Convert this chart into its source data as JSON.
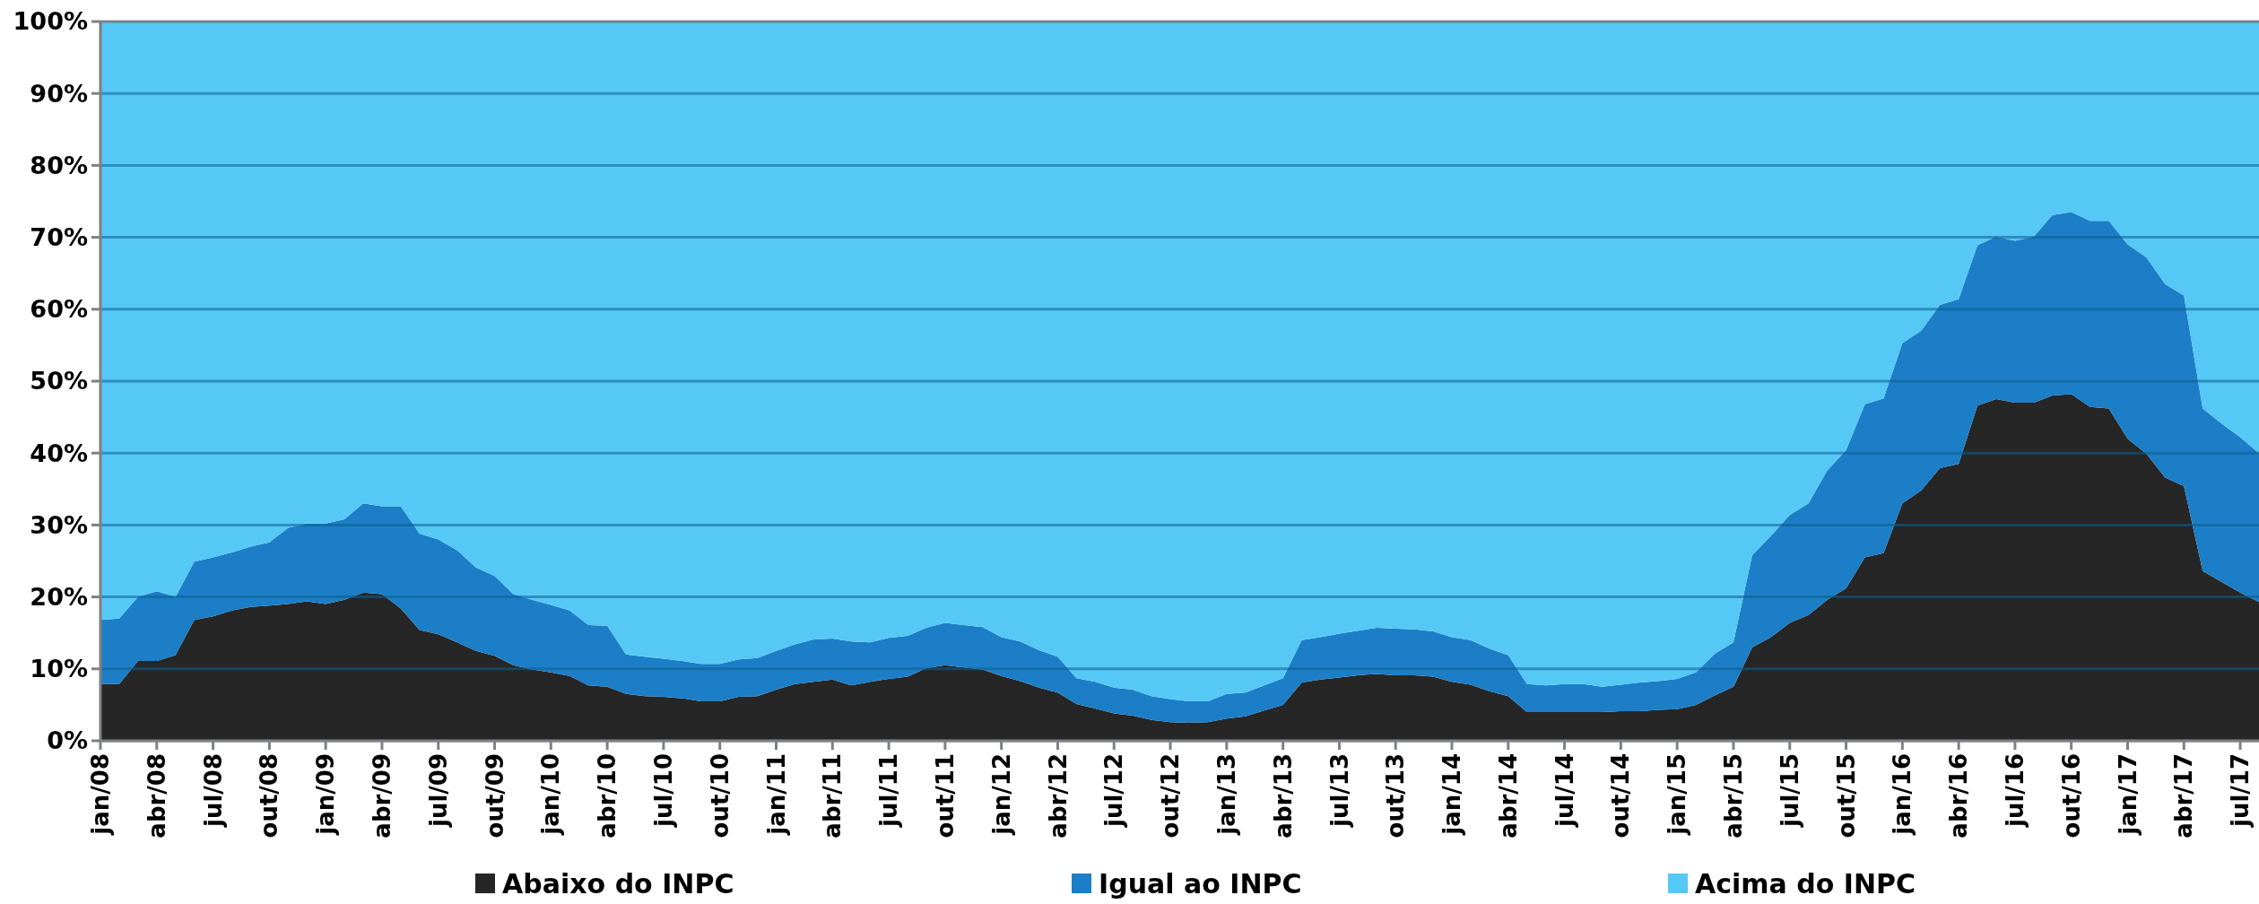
{
  "chart_data": {
    "type": "area",
    "stacked": true,
    "categories": [
      "jan/08",
      null,
      null,
      "abr/08",
      null,
      null,
      "jul/08",
      null,
      null,
      "out/08",
      null,
      null,
      "jan/09",
      null,
      null,
      "abr/09",
      null,
      null,
      "jul/09",
      null,
      null,
      "out/09",
      null,
      null,
      "jan/10",
      null,
      null,
      "abr/10",
      null,
      null,
      "jul/10",
      null,
      null,
      "out/10",
      null,
      null,
      "jan/11",
      null,
      null,
      "abr/11",
      null,
      null,
      "jul/11",
      null,
      null,
      "out/11",
      null,
      null,
      "jan/12",
      null,
      null,
      "abr/12",
      null,
      null,
      "jul/12",
      null,
      null,
      "out/12",
      null,
      null,
      "jan/13",
      null,
      null,
      "abr/13",
      null,
      null,
      "jul/13",
      null,
      null,
      "out/13",
      null,
      null,
      "jan/14",
      null,
      null,
      "abr/14",
      null,
      null,
      "jul/14",
      null,
      null,
      "out/14",
      null,
      null,
      "jan/15",
      null,
      null,
      "abr/15",
      null,
      null,
      "jul/15",
      null,
      null,
      "out/15",
      null,
      null,
      "jan/16",
      null,
      null,
      "abr/16",
      null,
      null,
      "jul/16",
      null,
      null,
      "out/16",
      null,
      null,
      "jan/17",
      null,
      null,
      "abr/17",
      null,
      null,
      "jul/17",
      null
    ],
    "series": [
      {
        "name": "Abaixo do INPC",
        "color": "#262626",
        "values": [
          7.9,
          7.9,
          11.1,
          11.1,
          11.9,
          16.8,
          17.3,
          18.1,
          18.6,
          18.8,
          19.0,
          19.4,
          19.0,
          19.6,
          20.6,
          20.4,
          18.4,
          15.4,
          14.8,
          13.7,
          12.5,
          11.8,
          10.5,
          9.9,
          9.5,
          9.0,
          7.7,
          7.5,
          6.5,
          6.2,
          6.1,
          5.9,
          5.5,
          5.5,
          6.1,
          6.2,
          7.1,
          7.9,
          8.2,
          8.5,
          7.7,
          8.2,
          8.6,
          8.9,
          10.1,
          10.5,
          10.2,
          9.9,
          9.0,
          8.3,
          7.4,
          6.7,
          5.1,
          4.5,
          3.8,
          3.5,
          2.9,
          2.6,
          2.5,
          2.6,
          3.1,
          3.4,
          4.2,
          5.0,
          8.1,
          8.5,
          8.8,
          9.1,
          9.3,
          9.1,
          9.1,
          8.9,
          8.2,
          7.8,
          6.9,
          6.2,
          4.0,
          4.0,
          4.0,
          4.0,
          4.0,
          4.1,
          4.1,
          4.3,
          4.4,
          5.0,
          6.3,
          7.5,
          13.0,
          14.4,
          16.4,
          17.5,
          19.6,
          21.2,
          25.5,
          26.1,
          33.0,
          34.8,
          37.9,
          38.5,
          46.6,
          47.5,
          47.0,
          47.0,
          48.0,
          48.2,
          46.4,
          46.2,
          42.0,
          39.9,
          36.6,
          35.4,
          23.6,
          22.1,
          20.6,
          19.3
        ]
      },
      {
        "name": "Igual ao INPC",
        "color": "#1c7ec6",
        "values": [
          8.9,
          9.1,
          8.9,
          9.7,
          8.1,
          8.1,
          8.2,
          8.1,
          8.4,
          8.8,
          10.6,
          10.8,
          11.2,
          11.2,
          12.4,
          12.2,
          14.2,
          13.4,
          13.2,
          12.8,
          11.6,
          11.1,
          9.9,
          9.7,
          9.4,
          9.1,
          8.4,
          8.5,
          5.5,
          5.5,
          5.3,
          5.2,
          5.2,
          5.2,
          5.2,
          5.3,
          5.4,
          5.5,
          5.9,
          5.7,
          6.1,
          5.5,
          5.7,
          5.7,
          5.6,
          5.9,
          5.9,
          5.9,
          5.4,
          5.5,
          5.2,
          5.0,
          3.6,
          3.7,
          3.6,
          3.6,
          3.3,
          3.2,
          3.0,
          2.9,
          3.4,
          3.3,
          3.5,
          3.7,
          5.9,
          5.9,
          6.1,
          6.2,
          6.4,
          6.5,
          6.4,
          6.3,
          6.2,
          6.2,
          5.9,
          5.7,
          3.9,
          3.7,
          3.9,
          3.9,
          3.5,
          3.7,
          4.0,
          4.0,
          4.2,
          4.5,
          5.8,
          6.2,
          12.8,
          14.1,
          15.0,
          15.5,
          18.0,
          19.2,
          21.3,
          21.5,
          22.3,
          22.2,
          22.7,
          22.9,
          22.3,
          22.6,
          22.5,
          23.1,
          25.1,
          25.3,
          25.9,
          26.1,
          27.0,
          27.3,
          26.9,
          26.5,
          22.6,
          22.0,
          21.6,
          20.7
        ]
      },
      {
        "name": "Acima do INPC",
        "color": "#56c8f5",
        "values": [
          83.2,
          83.0,
          80.0,
          79.2,
          80.0,
          75.1,
          74.5,
          73.8,
          73.0,
          72.4,
          70.4,
          69.8,
          69.8,
          69.2,
          67.0,
          67.4,
          67.4,
          71.2,
          72.0,
          73.5,
          75.9,
          77.1,
          79.6,
          80.4,
          81.1,
          81.9,
          83.9,
          84.0,
          88.0,
          88.3,
          88.6,
          88.9,
          89.3,
          89.3,
          88.7,
          88.5,
          87.5,
          86.6,
          85.9,
          85.8,
          86.2,
          86.3,
          85.7,
          85.4,
          84.3,
          83.6,
          83.9,
          84.2,
          85.6,
          86.2,
          87.4,
          88.3,
          91.3,
          91.8,
          92.6,
          92.9,
          93.8,
          94.2,
          94.5,
          94.5,
          93.5,
          93.3,
          92.3,
          91.3,
          86.0,
          85.6,
          85.1,
          84.7,
          84.3,
          84.4,
          84.5,
          84.8,
          85.6,
          86.0,
          87.2,
          88.1,
          92.1,
          92.3,
          92.1,
          92.1,
          92.5,
          92.2,
          91.9,
          91.7,
          91.4,
          90.5,
          87.9,
          86.3,
          74.2,
          71.5,
          68.6,
          67.0,
          62.4,
          59.6,
          53.2,
          52.4,
          44.7,
          43.0,
          39.4,
          38.6,
          31.1,
          29.9,
          30.5,
          29.9,
          26.9,
          26.5,
          27.7,
          27.7,
          31.0,
          32.8,
          36.5,
          38.1,
          53.8,
          55.9,
          57.8,
          60.0
        ]
      }
    ],
    "ylim": [
      0,
      100
    ],
    "yticks": [
      {
        "value": 0,
        "label": "0%"
      },
      {
        "value": 10,
        "label": "10%"
      },
      {
        "value": 20,
        "label": "20%"
      },
      {
        "value": 30,
        "label": "30%"
      },
      {
        "value": 40,
        "label": "40%"
      },
      {
        "value": 50,
        "label": "50%"
      },
      {
        "value": 60,
        "label": "60%"
      },
      {
        "value": 70,
        "label": "70%"
      },
      {
        "value": 80,
        "label": "80%"
      },
      {
        "value": 90,
        "label": "90%"
      },
      {
        "value": 100,
        "label": "100%"
      }
    ],
    "grid": "y",
    "legend": "bottom"
  }
}
